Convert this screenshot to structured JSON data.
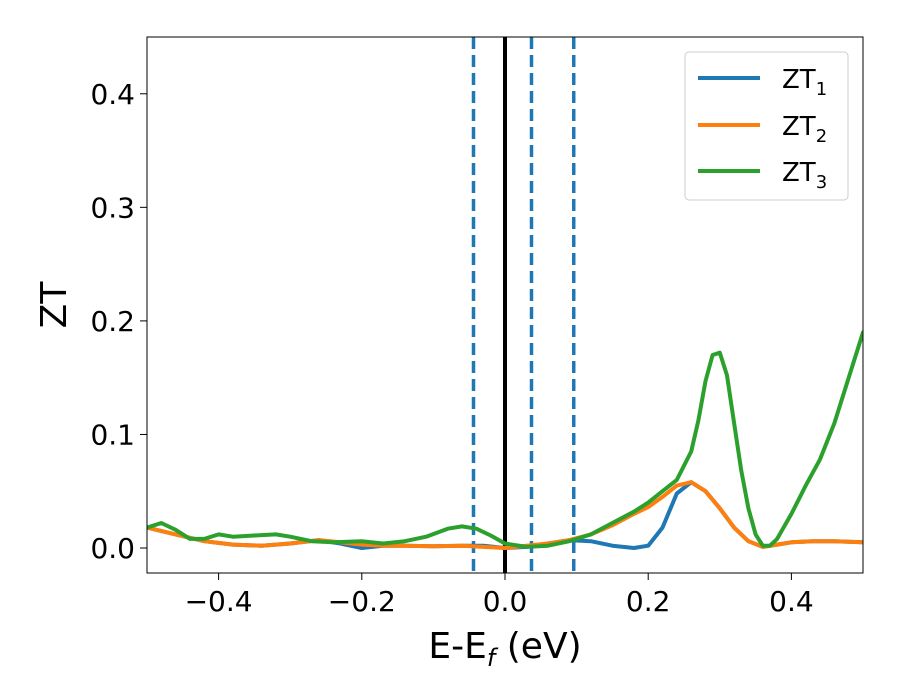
{
  "chart_data": {
    "type": "line",
    "xlabel_main": "E-E",
    "xlabel_sub": "f",
    "xlabel_unit": " (eV)",
    "ylabel": "ZT",
    "xlim": [
      -0.5,
      0.5
    ],
    "ylim": [
      -0.022,
      0.45
    ],
    "xticks": [
      -0.4,
      -0.2,
      0.0,
      0.2,
      0.4
    ],
    "xtick_labels": [
      "−0.4",
      "−0.2",
      "0.0",
      "0.2",
      "0.4"
    ],
    "yticks": [
      0.0,
      0.1,
      0.2,
      0.3,
      0.4
    ],
    "ytick_labels": [
      "0.0",
      "0.1",
      "0.2",
      "0.3",
      "0.4"
    ],
    "legend_position": "top-right",
    "vlines": [
      {
        "x": -0.044,
        "style": "dashed",
        "color": "#1f77b4"
      },
      {
        "x": 0.0,
        "style": "solid",
        "color": "#000000"
      },
      {
        "x": 0.037,
        "style": "dashed",
        "color": "#1f77b4"
      },
      {
        "x": 0.096,
        "style": "dashed",
        "color": "#1f77b4"
      }
    ],
    "series": [
      {
        "name": "ZT",
        "name_sub": "1",
        "color": "#1f77b4",
        "x": [
          -0.5,
          -0.46,
          -0.42,
          -0.38,
          -0.34,
          -0.3,
          -0.26,
          -0.23,
          -0.2,
          -0.17,
          -0.14,
          -0.1,
          -0.06,
          -0.03,
          0.0,
          0.03,
          0.06,
          0.09,
          0.12,
          0.15,
          0.18,
          0.2,
          0.22,
          0.24,
          0.26,
          0.28,
          0.3,
          0.32,
          0.34,
          0.36,
          0.38,
          0.4,
          0.43,
          0.46,
          0.5
        ],
        "y": [
          0.018,
          0.012,
          0.006,
          0.003,
          0.002,
          0.004,
          0.007,
          0.004,
          0.0,
          0.002,
          0.002,
          0.0015,
          0.002,
          0.002,
          0.0,
          0.001,
          0.004,
          0.007,
          0.006,
          0.002,
          0.0,
          0.002,
          0.018,
          0.048,
          0.058,
          0.05,
          0.035,
          0.018,
          0.006,
          0.001,
          0.003,
          0.005,
          0.006,
          0.006,
          0.005
        ]
      },
      {
        "name": "ZT",
        "name_sub": "2",
        "color": "#ff7f0e",
        "x": [
          -0.5,
          -0.46,
          -0.42,
          -0.38,
          -0.34,
          -0.3,
          -0.26,
          -0.23,
          -0.2,
          -0.17,
          -0.14,
          -0.1,
          -0.06,
          -0.03,
          0.0,
          0.03,
          0.06,
          0.09,
          0.12,
          0.15,
          0.18,
          0.2,
          0.22,
          0.24,
          0.26,
          0.28,
          0.3,
          0.32,
          0.34,
          0.36,
          0.38,
          0.4,
          0.43,
          0.46,
          0.5
        ],
        "y": [
          0.018,
          0.012,
          0.006,
          0.003,
          0.002,
          0.004,
          0.007,
          0.005,
          0.003,
          0.002,
          0.002,
          0.0015,
          0.002,
          0.001,
          0.0,
          0.002,
          0.004,
          0.007,
          0.012,
          0.02,
          0.03,
          0.036,
          0.045,
          0.055,
          0.058,
          0.05,
          0.035,
          0.018,
          0.006,
          0.001,
          0.003,
          0.005,
          0.006,
          0.006,
          0.005
        ]
      },
      {
        "name": "ZT",
        "name_sub": "3",
        "color": "#2ca02c",
        "x": [
          -0.5,
          -0.48,
          -0.46,
          -0.44,
          -0.42,
          -0.4,
          -0.38,
          -0.35,
          -0.32,
          -0.3,
          -0.27,
          -0.24,
          -0.2,
          -0.17,
          -0.14,
          -0.11,
          -0.08,
          -0.06,
          -0.04,
          -0.02,
          0.0,
          0.03,
          0.06,
          0.09,
          0.12,
          0.15,
          0.18,
          0.2,
          0.22,
          0.24,
          0.26,
          0.27,
          0.28,
          0.29,
          0.3,
          0.31,
          0.32,
          0.33,
          0.34,
          0.35,
          0.36,
          0.37,
          0.38,
          0.4,
          0.42,
          0.44,
          0.46,
          0.48,
          0.5
        ],
        "y": [
          0.018,
          0.022,
          0.016,
          0.008,
          0.008,
          0.012,
          0.01,
          0.011,
          0.012,
          0.01,
          0.006,
          0.005,
          0.006,
          0.004,
          0.006,
          0.01,
          0.017,
          0.019,
          0.017,
          0.011,
          0.004,
          0.001,
          0.002,
          0.006,
          0.012,
          0.022,
          0.032,
          0.04,
          0.05,
          0.06,
          0.085,
          0.112,
          0.147,
          0.17,
          0.172,
          0.152,
          0.11,
          0.068,
          0.035,
          0.012,
          0.002,
          0.002,
          0.008,
          0.03,
          0.055,
          0.078,
          0.11,
          0.15,
          0.19
        ]
      }
    ]
  }
}
